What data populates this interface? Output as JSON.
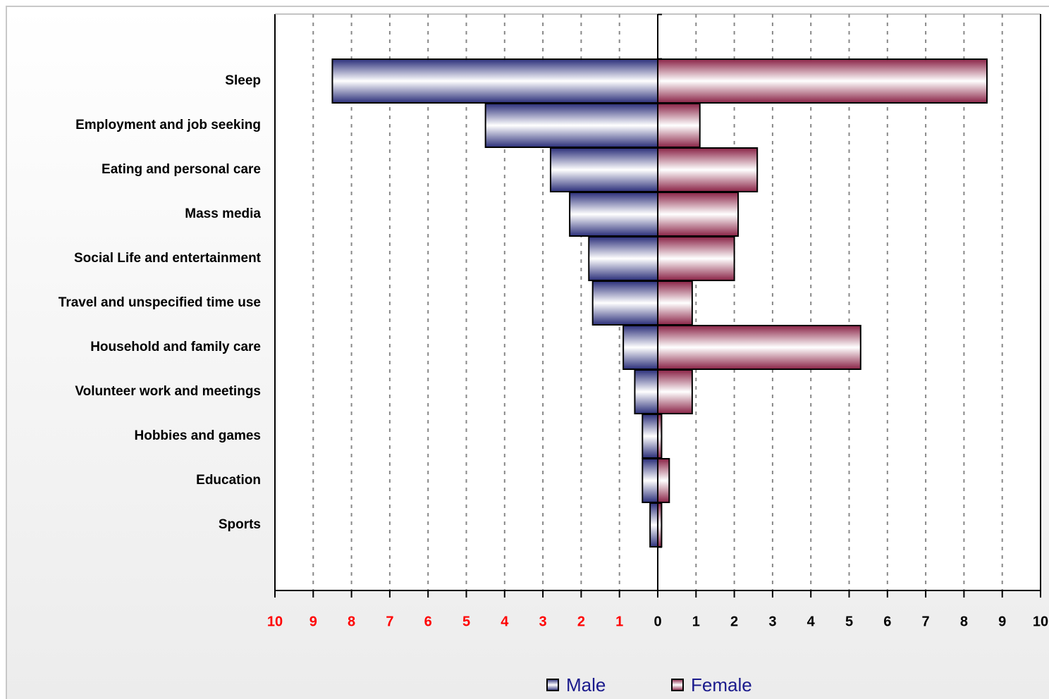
{
  "chart_data": {
    "type": "butterfly-bar",
    "categories": [
      "Sleep",
      "Employment and job seeking",
      "Eating and personal care",
      "Mass media",
      "Social Life and entertainment",
      "Travel and unspecified time use",
      "Household and family care",
      "Volunteer work and meetings",
      "Hobbies and games",
      "Education",
      "Sports"
    ],
    "series": [
      {
        "name": "Male",
        "color": "#2b2f7a",
        "values": [
          -8.5,
          -4.5,
          -2.8,
          -2.3,
          -1.8,
          -1.7,
          -0.9,
          -0.6,
          -0.4,
          -0.4,
          -0.2
        ]
      },
      {
        "name": "Female",
        "color": "#8a2346",
        "values": [
          8.6,
          1.1,
          2.6,
          2.1,
          2.0,
          0.9,
          5.3,
          0.9,
          0.1,
          0.3,
          0.1
        ]
      }
    ],
    "xlim": [
      -10,
      10
    ],
    "xticks": [
      {
        "value": -10,
        "label": "10"
      },
      {
        "value": -9,
        "label": "9"
      },
      {
        "value": -8,
        "label": "8"
      },
      {
        "value": -7,
        "label": "7"
      },
      {
        "value": -6,
        "label": "6"
      },
      {
        "value": -5,
        "label": "5"
      },
      {
        "value": -4,
        "label": "4"
      },
      {
        "value": -3,
        "label": "3"
      },
      {
        "value": -2,
        "label": "2"
      },
      {
        "value": -1,
        "label": "1"
      },
      0,
      1,
      2,
      3,
      4,
      5,
      6,
      7,
      8,
      9,
      10
    ],
    "negative_tick_color": "#ff0000",
    "grid": true,
    "legend": "bottom"
  }
}
